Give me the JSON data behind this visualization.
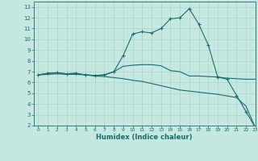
{
  "xlabel": "Humidex (Indice chaleur)",
  "xlim": [
    -0.5,
    23
  ],
  "ylim": [
    2,
    13.5
  ],
  "xticks": [
    0,
    1,
    2,
    3,
    4,
    5,
    6,
    7,
    8,
    9,
    10,
    11,
    12,
    13,
    14,
    15,
    16,
    17,
    18,
    19,
    20,
    21,
    22,
    23
  ],
  "yticks": [
    2,
    3,
    4,
    5,
    6,
    7,
    8,
    9,
    10,
    11,
    12,
    13
  ],
  "bg_color": "#c5e8e0",
  "grid_color": "#aad4cc",
  "line_color": "#1a6b6b",
  "line1_x": [
    0,
    1,
    2,
    3,
    4,
    5,
    6,
    7,
    8,
    9,
    10,
    11,
    12,
    13,
    14,
    15,
    16,
    17,
    18,
    19,
    20,
    21,
    22,
    23
  ],
  "line1_y": [
    6.7,
    6.85,
    6.9,
    6.8,
    6.85,
    6.7,
    6.65,
    6.7,
    7.0,
    8.5,
    10.5,
    10.7,
    10.6,
    11.0,
    11.9,
    12.0,
    12.85,
    11.4,
    9.5,
    6.5,
    6.3,
    4.8,
    3.3,
    1.8
  ],
  "line2_x": [
    0,
    1,
    2,
    3,
    4,
    5,
    6,
    7,
    8,
    9,
    10,
    11,
    12,
    13,
    14,
    15,
    16,
    17,
    18,
    19,
    20,
    21,
    22,
    23
  ],
  "line2_y": [
    6.7,
    6.85,
    6.9,
    6.8,
    6.85,
    6.7,
    6.65,
    6.7,
    7.0,
    7.5,
    7.6,
    7.65,
    7.65,
    7.55,
    7.1,
    7.0,
    6.6,
    6.6,
    6.55,
    6.5,
    6.4,
    6.35,
    6.3,
    6.3
  ],
  "line3_x": [
    0,
    1,
    2,
    3,
    4,
    5,
    6,
    7,
    8,
    9,
    10,
    11,
    12,
    13,
    14,
    15,
    16,
    17,
    18,
    19,
    20,
    21,
    22,
    23
  ],
  "line3_y": [
    6.7,
    6.75,
    6.8,
    6.75,
    6.75,
    6.7,
    6.6,
    6.55,
    6.45,
    6.35,
    6.2,
    6.1,
    5.9,
    5.7,
    5.5,
    5.3,
    5.2,
    5.1,
    5.0,
    4.9,
    4.75,
    4.6,
    3.8,
    1.8
  ],
  "linewidth": 0.8,
  "markersize": 3.5
}
